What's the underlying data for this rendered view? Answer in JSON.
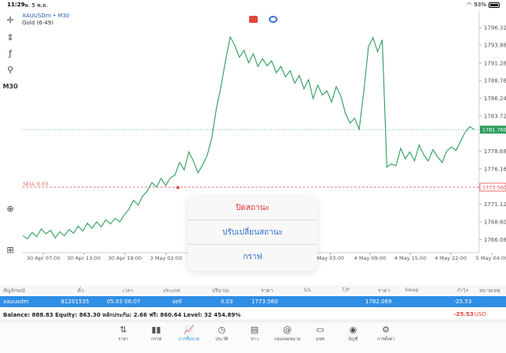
{
  "status_bar": {
    "time": "11:29",
    "date": "พ. 5 พ.ค.",
    "battery": "93%"
  },
  "chart_header": {
    "symbol_line": "XAUUSDm • M30",
    "description": "Gold (6-49)"
  },
  "left_tools": {
    "m30_label": "M30"
  },
  "chart_data": {
    "type": "line",
    "series_color": "#2e9e5c",
    "y_ticks": [
      "1796.320",
      "1793.880",
      "1791.280",
      "1788.760",
      "1786.240",
      "1783.720",
      "1781.769",
      "1778.680",
      "1776.160",
      "1773.560",
      "1771.120",
      "1768.600",
      "1766.080"
    ],
    "x_ticks": [
      "30 Apr 07:00",
      "30 Apr 13:00",
      "30 Apr 19:00",
      "3 May 02:00",
      "May 03:00",
      "4 May 09:00",
      "4 May 15:00",
      "4 May 22:00",
      "5 May 04:00"
    ],
    "ylim": [
      1764.2,
      1797.8
    ],
    "current_price": 1781.769,
    "sell_level": 1773.56,
    "sell_label": "SELL 0.03",
    "values": [
      1766.6,
      1766.2,
      1767.1,
      1766.5,
      1767.6,
      1766.9,
      1767.4,
      1766.3,
      1767.2,
      1766.6,
      1767.5,
      1767.0,
      1768.0,
      1767.3,
      1768.4,
      1767.7,
      1768.6,
      1767.9,
      1768.9,
      1768.3,
      1769.1,
      1768.6,
      1769.6,
      1770.4,
      1771.7,
      1771.0,
      1772.3,
      1773.0,
      1774.2,
      1773.6,
      1774.8,
      1773.8,
      1774.9,
      1775.3,
      1777.1,
      1776.0,
      1778.6,
      1777.3,
      1775.6,
      1776.7,
      1778.1,
      1780.6,
      1784.8,
      1787.9,
      1791.7,
      1795.0,
      1793.8,
      1792.1,
      1793.1,
      1791.3,
      1792.6,
      1790.8,
      1791.9,
      1790.9,
      1791.6,
      1789.9,
      1790.8,
      1789.3,
      1790.2,
      1788.4,
      1789.5,
      1787.6,
      1788.9,
      1786.2,
      1788.1,
      1786.7,
      1787.3,
      1785.7,
      1787.9,
      1786.6,
      1784.1,
      1782.7,
      1783.4,
      1781.8,
      1787.3,
      1793.6,
      1794.9,
      1792.9,
      1794.6,
      1776.4,
      1776.9,
      1776.6,
      1779.1,
      1777.6,
      1778.6,
      1777.3,
      1779.6,
      1778.2,
      1777.3,
      1778.9,
      1777.9,
      1777.1,
      1778.7,
      1779.3,
      1778.8,
      1780.1,
      1781.4,
      1782.2,
      1781.769
    ],
    "last_price_label": "1781.769",
    "sell_price_label": "1773.560"
  },
  "top_icons": {
    "icon_a_color": "#e0463a",
    "icon_b_color": "#3a6fd8"
  },
  "popup": {
    "close_position": "ปิดสถานะ",
    "modify_position": "ปรับเปลี่ยนสถานะ",
    "chart": "กราฟ"
  },
  "table": {
    "headers": {
      "symbol": "สัญลักษณ์",
      "ticket": "ตั๋ว",
      "time": "เวลา",
      "type": "ประเภท",
      "volume": "ปริมาณ",
      "price": "ราคา",
      "sl": "S/L",
      "tp": "T/P",
      "current_price": "ราคา",
      "swap": "Swap",
      "profit": "กำไร",
      "comment": "หมายเหตุ"
    },
    "row": {
      "symbol": "xauusdm",
      "ticket": "81201535",
      "time": "05.03 06:07",
      "type": "sell",
      "volume": "0.03",
      "price": "1773.560",
      "current_price": "1782.069",
      "profit": "-25.53"
    }
  },
  "balance": {
    "text": "Balance: 888.83 Equity: 863.30 หลักประกัน: 2.66 ฟรี: 860.64 Level: 32 454.89%",
    "total": "-25.53",
    "currency": "USD"
  },
  "bottom_nav": {
    "items": [
      {
        "icon": "quotes-icon",
        "glyph": "⇅",
        "label": "ราคา"
      },
      {
        "icon": "chart-icon",
        "glyph": "▮▮",
        "label": "กราฟ"
      },
      {
        "icon": "trade-icon",
        "glyph": "📈",
        "label": "การซื้อขาย"
      },
      {
        "icon": "history-icon",
        "glyph": "◷",
        "label": "ประวัติ"
      },
      {
        "icon": "news-icon",
        "glyph": "▤",
        "label": "ข่าว"
      },
      {
        "icon": "mailbox-icon",
        "glyph": "@",
        "label": "กล่องจดหมาย"
      },
      {
        "icon": "chat-icon",
        "glyph": "▭",
        "label": "แชท"
      },
      {
        "icon": "account-icon",
        "glyph": "◉",
        "label": "บัญชี"
      },
      {
        "icon": "settings-icon",
        "glyph": "⚙",
        "label": "การตั้งค่า"
      }
    ]
  }
}
